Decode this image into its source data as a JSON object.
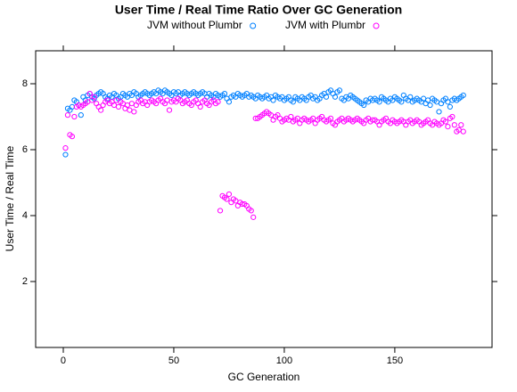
{
  "chart_data": {
    "type": "scatter",
    "title": "User Time / Real Time Ratio Over GC Generation",
    "x_label": "GC Generation",
    "y_label": "User Time / Real Time",
    "xlim": [
      -12.5,
      194
    ],
    "ylim": [
      0,
      9
    ],
    "xticks": [
      0,
      50,
      100,
      150
    ],
    "yticks": [
      2,
      4,
      6,
      8
    ],
    "x": [
      1,
      2,
      3,
      4,
      5,
      6,
      7,
      8,
      9,
      10,
      11,
      12,
      13,
      14,
      15,
      16,
      17,
      18,
      19,
      20,
      21,
      22,
      23,
      24,
      25,
      26,
      27,
      28,
      29,
      30,
      31,
      32,
      33,
      34,
      35,
      36,
      37,
      38,
      39,
      40,
      41,
      42,
      43,
      44,
      45,
      46,
      47,
      48,
      49,
      50,
      51,
      52,
      53,
      54,
      55,
      56,
      57,
      58,
      59,
      60,
      61,
      62,
      63,
      64,
      65,
      66,
      67,
      68,
      69,
      70,
      71,
      72,
      73,
      74,
      75,
      76,
      77,
      78,
      79,
      80,
      81,
      82,
      83,
      84,
      85,
      86,
      87,
      88,
      89,
      90,
      91,
      92,
      93,
      94,
      95,
      96,
      97,
      98,
      99,
      100,
      101,
      102,
      103,
      104,
      105,
      106,
      107,
      108,
      109,
      110,
      111,
      112,
      113,
      114,
      115,
      116,
      117,
      118,
      119,
      120,
      121,
      122,
      123,
      124,
      125,
      126,
      127,
      128,
      129,
      130,
      131,
      132,
      133,
      134,
      135,
      136,
      137,
      138,
      139,
      140,
      141,
      142,
      143,
      144,
      145,
      146,
      147,
      148,
      149,
      150,
      151,
      152,
      153,
      154,
      155,
      156,
      157,
      158,
      159,
      160,
      161,
      162,
      163,
      164,
      165,
      166,
      167,
      168,
      169,
      170,
      171,
      172,
      173,
      174,
      175,
      176,
      177,
      178,
      179,
      180,
      181
    ],
    "series": [
      {
        "name": "JVM without Plumbr",
        "color": "#0080ff",
        "values": [
          5.85,
          7.25,
          7.2,
          7.3,
          7.5,
          7.45,
          7.35,
          7.05,
          7.6,
          7.5,
          7.65,
          7.7,
          7.6,
          7.55,
          7.65,
          7.7,
          7.75,
          7.7,
          7.6,
          7.55,
          7.65,
          7.6,
          7.7,
          7.65,
          7.55,
          7.6,
          7.7,
          7.65,
          7.6,
          7.7,
          7.65,
          7.75,
          7.7,
          7.6,
          7.65,
          7.7,
          7.75,
          7.7,
          7.65,
          7.7,
          7.75,
          7.7,
          7.8,
          7.75,
          7.7,
          7.8,
          7.75,
          7.7,
          7.65,
          7.75,
          7.7,
          7.75,
          7.65,
          7.7,
          7.75,
          7.7,
          7.65,
          7.7,
          7.75,
          7.7,
          7.65,
          7.7,
          7.75,
          7.7,
          7.6,
          7.7,
          7.65,
          7.6,
          7.7,
          7.65,
          7.6,
          7.65,
          7.7,
          7.55,
          7.45,
          7.6,
          7.65,
          7.6,
          7.7,
          7.65,
          7.6,
          7.65,
          7.7,
          7.6,
          7.65,
          7.6,
          7.55,
          7.65,
          7.6,
          7.55,
          7.6,
          7.65,
          7.55,
          7.6,
          7.5,
          7.65,
          7.6,
          7.55,
          7.6,
          7.5,
          7.55,
          7.6,
          7.5,
          7.45,
          7.6,
          7.55,
          7.5,
          7.6,
          7.55,
          7.5,
          7.6,
          7.65,
          7.55,
          7.6,
          7.5,
          7.55,
          7.65,
          7.7,
          7.6,
          7.75,
          7.8,
          7.7,
          7.6,
          7.75,
          7.8,
          7.55,
          7.5,
          7.6,
          7.55,
          7.65,
          7.6,
          7.55,
          7.5,
          7.45,
          7.4,
          7.35,
          7.5,
          7.45,
          7.55,
          7.5,
          7.55,
          7.5,
          7.45,
          7.6,
          7.55,
          7.5,
          7.45,
          7.55,
          7.5,
          7.6,
          7.55,
          7.5,
          7.45,
          7.65,
          7.55,
          7.5,
          7.6,
          7.45,
          7.5,
          7.55,
          7.5,
          7.45,
          7.55,
          7.4,
          7.5,
          7.35,
          7.55,
          7.5,
          7.45,
          7.15,
          7.4,
          7.5,
          7.55,
          7.45,
          7.3,
          7.5,
          7.55,
          7.5,
          7.55,
          7.6,
          7.65
        ]
      },
      {
        "name": "JVM with Plumbr",
        "color": "#ff00ff",
        "values": [
          6.05,
          7.05,
          6.45,
          6.4,
          7.0,
          7.3,
          7.35,
          7.3,
          7.35,
          7.4,
          7.45,
          7.7,
          7.5,
          7.6,
          7.4,
          7.3,
          7.2,
          7.35,
          7.45,
          7.5,
          7.4,
          7.45,
          7.35,
          7.5,
          7.3,
          7.45,
          7.4,
          7.25,
          7.35,
          7.2,
          7.4,
          7.15,
          7.35,
          7.45,
          7.5,
          7.4,
          7.45,
          7.35,
          7.45,
          7.5,
          7.45,
          7.4,
          7.5,
          7.55,
          7.45,
          7.4,
          7.5,
          7.2,
          7.45,
          7.5,
          7.45,
          7.55,
          7.5,
          7.4,
          7.45,
          7.5,
          7.4,
          7.35,
          7.45,
          7.5,
          7.4,
          7.3,
          7.45,
          7.5,
          7.4,
          7.35,
          7.45,
          7.5,
          7.4,
          7.45,
          4.15,
          4.6,
          4.55,
          4.5,
          4.65,
          4.4,
          4.5,
          4.45,
          4.3,
          4.4,
          4.35,
          4.35,
          4.3,
          4.2,
          4.15,
          3.95,
          6.95,
          6.95,
          7.0,
          7.05,
          7.1,
          7.15,
          7.1,
          7.05,
          6.9,
          7.0,
          7.05,
          6.95,
          6.85,
          6.9,
          6.95,
          6.9,
          7.0,
          6.85,
          6.9,
          6.95,
          6.8,
          6.9,
          6.95,
          6.9,
          6.85,
          6.9,
          6.95,
          6.8,
          6.9,
          6.95,
          7.0,
          6.9,
          6.85,
          6.9,
          6.95,
          6.8,
          6.75,
          6.85,
          6.9,
          6.95,
          6.85,
          6.9,
          6.95,
          6.9,
          6.85,
          6.9,
          6.95,
          6.9,
          6.85,
          6.8,
          6.9,
          6.95,
          6.85,
          6.9,
          6.9,
          6.85,
          6.75,
          6.85,
          6.9,
          6.95,
          6.85,
          6.8,
          6.9,
          6.85,
          6.8,
          6.85,
          6.9,
          6.85,
          6.75,
          6.85,
          6.9,
          6.8,
          6.85,
          6.9,
          6.85,
          6.75,
          6.8,
          6.85,
          6.9,
          6.8,
          6.75,
          6.85,
          6.8,
          6.75,
          6.8,
          6.9,
          6.85,
          6.7,
          6.95,
          7.0,
          6.75,
          6.55,
          6.6,
          6.75,
          6.55
        ]
      }
    ]
  }
}
